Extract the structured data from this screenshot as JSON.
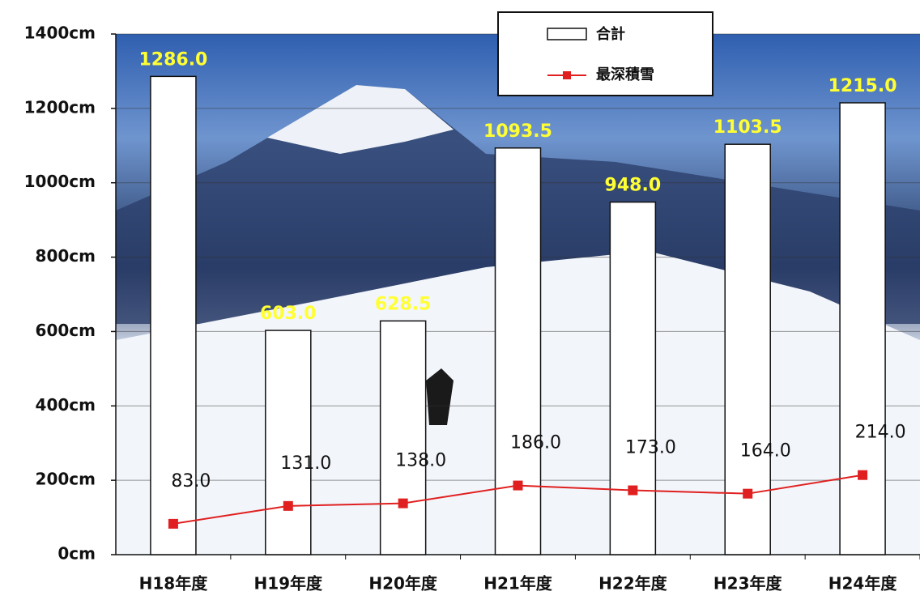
{
  "chart_data": {
    "type": "bar",
    "categories": [
      "H18年度",
      "H19年度",
      "H20年度",
      "H21年度",
      "H22年度",
      "H23年度",
      "H24年度"
    ],
    "series": [
      {
        "name": "合計",
        "type": "bar",
        "color": "#ffffff",
        "values": [
          1286.0,
          603.0,
          628.5,
          1093.5,
          948.0,
          1103.5,
          1215.0
        ],
        "value_labels": [
          "1286.0",
          "603.0",
          "628.5",
          "1093.5",
          "948.0",
          "1103.5",
          "1215.0"
        ]
      },
      {
        "name": "最深積雪",
        "type": "line",
        "color": "#e02020",
        "values": [
          83.0,
          131.0,
          138.0,
          186.0,
          173.0,
          164.0,
          214.0
        ],
        "value_labels": [
          "83.0",
          "131.0",
          "138.0",
          "186.0",
          "173.0",
          "164.0",
          "214.0"
        ]
      }
    ],
    "ylim": [
      0,
      1400
    ],
    "yticks": [
      {
        "value": 0,
        "label": "0cm"
      },
      {
        "value": 200,
        "label": "200cm"
      },
      {
        "value": 400,
        "label": "400cm"
      },
      {
        "value": 600,
        "label": "600cm"
      },
      {
        "value": 800,
        "label": "800cm"
      },
      {
        "value": 1000,
        "label": "1000cm"
      },
      {
        "value": 1200,
        "label": "1200cm"
      },
      {
        "value": 1400,
        "label": "1400cm"
      }
    ],
    "grid": true
  }
}
